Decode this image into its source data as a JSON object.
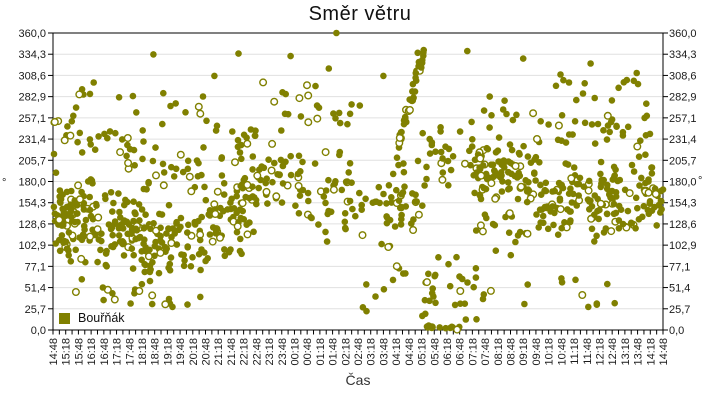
{
  "chart_data": {
    "type": "scatter",
    "title": "Směr větru",
    "xlabel": "Čas",
    "ylabel": "°",
    "legend": [
      "Bouřňák"
    ],
    "ylim": [
      0,
      360
    ],
    "y_tick_labels": [
      "0,0",
      "25,7",
      "51,4",
      "77,1",
      "102,9",
      "128,6",
      "154,3",
      "180,0",
      "205,7",
      "231,4",
      "257,1",
      "282,9",
      "308,6",
      "334,3",
      "360,0"
    ],
    "x_tick_labels": [
      "14:48",
      "15:18",
      "15:48",
      "16:18",
      "16:48",
      "17:18",
      "17:48",
      "18:18",
      "18:48",
      "19:18",
      "19:48",
      "20:18",
      "20:48",
      "21:18",
      "21:48",
      "22:18",
      "22:48",
      "23:18",
      "23:48",
      "00:18",
      "00:48",
      "01:18",
      "01:48",
      "02:18",
      "02:48",
      "03:18",
      "03:48",
      "04:18",
      "04:48",
      "05:18",
      "05:48",
      "06:18",
      "06:48",
      "07:18",
      "07:48",
      "08:18",
      "08:48",
      "09:18",
      "09:48",
      "10:18",
      "10:48",
      "11:18",
      "11:48",
      "12:18",
      "12:48",
      "13:18",
      "13:48",
      "14:18",
      "14:48"
    ],
    "x_minor_ticks_per_label": 2,
    "grid_color": "#e0e0e0",
    "frame_color": "#000000",
    "marker": {
      "color": "#808000",
      "radius": 3.3,
      "hollow_fraction": 0.12
    },
    "points_model": {
      "seed": 1337,
      "clusters": [
        {
          "t": [
            0,
            3.5
          ],
          "v": [
            70,
            205
          ],
          "n": 95
        },
        {
          "t": [
            0,
            3.5
          ],
          "v": [
            205,
            265
          ],
          "n": 16
        },
        {
          "t": [
            0,
            7
          ],
          "v": [
            28,
            70
          ],
          "n": 12
        },
        {
          "t": [
            3.5,
            7.5
          ],
          "v": [
            60,
            185
          ],
          "n": 85
        },
        {
          "t": [
            3.5,
            7.5
          ],
          "v": [
            185,
            260
          ],
          "n": 18
        },
        {
          "t": [
            0.5,
            7
          ],
          "v": [
            262,
            300
          ],
          "n": 7
        },
        {
          "t": [
            7.5,
            12
          ],
          "v": [
            55,
            160
          ],
          "n": 70
        },
        {
          "t": [
            7.5,
            12
          ],
          "v": [
            160,
            232
          ],
          "n": 24
        },
        {
          "t": [
            8,
            12.5
          ],
          "v": [
            232,
            300
          ],
          "n": 8
        },
        {
          "t": [
            7.5,
            12.5
          ],
          "v": [
            18,
            55
          ],
          "n": 8
        },
        {
          "t": [
            12,
            16
          ],
          "v": [
            80,
            205
          ],
          "n": 60
        },
        {
          "t": [
            12,
            16
          ],
          "v": [
            205,
            262
          ],
          "n": 14
        },
        {
          "t": [
            14,
            19.5
          ],
          "v": [
            135,
            235
          ],
          "n": 55
        },
        {
          "t": [
            16,
            21.5
          ],
          "v": [
            232,
            312
          ],
          "n": 16
        },
        {
          "t": [
            19,
            24
          ],
          "v": [
            100,
            232
          ],
          "n": 45
        },
        {
          "t": [
            21,
            24.5
          ],
          "v": [
            232,
            285
          ],
          "n": 8
        },
        {
          "t": [
            24,
            27.5
          ],
          "v": [
            90,
            230
          ],
          "n": 32
        },
        {
          "t": [
            24,
            28
          ],
          "v": [
            18,
            90
          ],
          "n": 10
        },
        {
          "t": [
            27.2,
            29.2
          ],
          "v": [
            228,
            338
          ],
          "n": 38,
          "corr": true
        },
        {
          "t": [
            27.2,
            29.5
          ],
          "v": [
            95,
            228
          ],
          "n": 22
        },
        {
          "t": [
            29,
            33
          ],
          "v": [
            168,
            262
          ],
          "n": 28
        },
        {
          "t": [
            29,
            33.5
          ],
          "v": [
            5,
            100
          ],
          "n": 28
        },
        {
          "t": [
            29.2,
            32.2
          ],
          "v": [
            0,
            6
          ],
          "n": 12
        },
        {
          "t": [
            33,
            38
          ],
          "v": [
            148,
            235
          ],
          "n": 95
        },
        {
          "t": [
            33,
            38
          ],
          "v": [
            88,
            148
          ],
          "n": 20
        },
        {
          "t": [
            33.5,
            38
          ],
          "v": [
            238,
            308
          ],
          "n": 10
        },
        {
          "t": [
            33,
            38.5
          ],
          "v": [
            25,
            80
          ],
          "n": 6
        },
        {
          "t": [
            38,
            43
          ],
          "v": [
            100,
            208
          ],
          "n": 85
        },
        {
          "t": [
            38,
            43
          ],
          "v": [
            208,
            268
          ],
          "n": 16
        },
        {
          "t": [
            39.5,
            43
          ],
          "v": [
            268,
            315
          ],
          "n": 7
        },
        {
          "t": [
            39,
            44.5
          ],
          "v": [
            2,
            80
          ],
          "n": 9
        },
        {
          "t": [
            43,
            48
          ],
          "v": [
            108,
            215
          ],
          "n": 90
        },
        {
          "t": [
            43,
            48
          ],
          "v": [
            215,
            285
          ],
          "n": 20
        },
        {
          "t": [
            44.5,
            47.5
          ],
          "v": [
            285,
            315
          ],
          "n": 5
        }
      ],
      "notable_points": [
        [
          7.9,
          334
        ],
        [
          3.2,
          300
        ],
        [
          5.2,
          282
        ],
        [
          11.8,
          283
        ],
        [
          12.7,
          308
        ],
        [
          14.6,
          335
        ],
        [
          18.7,
          332
        ],
        [
          21.7,
          317
        ],
        [
          22.3,
          360
        ],
        [
          26.0,
          308
        ],
        [
          28.7,
          336
        ],
        [
          32.6,
          338
        ],
        [
          37.0,
          329
        ],
        [
          42.3,
          323
        ],
        [
          45.7,
          302
        ],
        [
          40.6,
          300
        ]
      ]
    }
  }
}
